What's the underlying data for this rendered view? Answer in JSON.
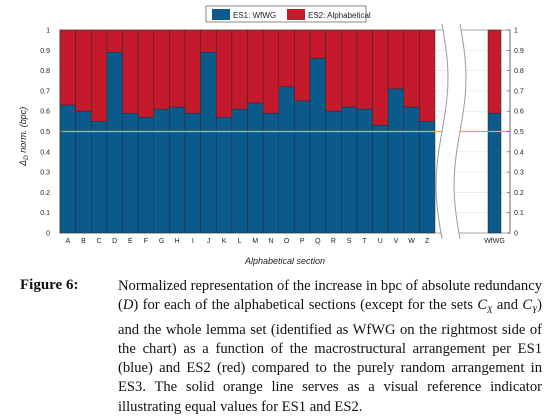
{
  "chart_data": {
    "type": "bar",
    "stacked": true,
    "categories": [
      "A",
      "B",
      "C",
      "D",
      "E",
      "F",
      "G",
      "H",
      "I",
      "J",
      "K",
      "L",
      "M",
      "N",
      "O",
      "P",
      "Q",
      "R",
      "S",
      "T",
      "U",
      "V",
      "W",
      "Z"
    ],
    "series": [
      {
        "name": "ES1: WfWG",
        "color": "#0b5a8c",
        "values": [
          0.63,
          0.6,
          0.55,
          0.89,
          0.59,
          0.57,
          0.61,
          0.62,
          0.59,
          0.89,
          0.57,
          0.61,
          0.64,
          0.59,
          0.72,
          0.65,
          0.86,
          0.6,
          0.62,
          0.61,
          0.53,
          0.71,
          0.62,
          0.55
        ]
      },
      {
        "name": "ES2: Alphabetical",
        "color": "#c41a2c",
        "values": [
          0.37,
          0.4,
          0.45,
          0.11,
          0.41,
          0.43,
          0.39,
          0.38,
          0.41,
          0.11,
          0.43,
          0.39,
          0.36,
          0.41,
          0.28,
          0.35,
          0.14,
          0.4,
          0.38,
          0.39,
          0.47,
          0.29,
          0.38,
          0.45
        ]
      }
    ],
    "extra_bar": {
      "category": "WfWG",
      "es1": 0.59,
      "es2": 0.41
    },
    "reference_line": {
      "y": 0.5,
      "color": "#f0a830"
    },
    "xlabel": "Alphabetical section",
    "ylabel": "Δ_D norm. (bpc)",
    "ylim": [
      0,
      1
    ],
    "yticks": [
      "0",
      "0.1",
      "0.2",
      "0.3",
      "0.4",
      "0.5",
      "0.6",
      "0.7",
      "0.8",
      "0.9",
      "1"
    ],
    "legend": {
      "position": "top-center",
      "es1_label": "ES1: WfWG",
      "es2_label": "ES2: Alphabetical"
    }
  },
  "caption": {
    "label": "Figure 6:",
    "text": "Normalized representation of the increase in bpc of absolute redundancy (D) for each of the alphabetical sections (except for the sets C_X and C_Y) and the whole lemma set (identified as WfWG on the rightmost side of the chart) as a function of the macrostructural arrangement per ES1 (blue) and ES2 (red) compared to the purely random arrangement in ES3. The solid orange line serves as a visual reference indicator illustrating equal values for ES1 and ES2."
  }
}
